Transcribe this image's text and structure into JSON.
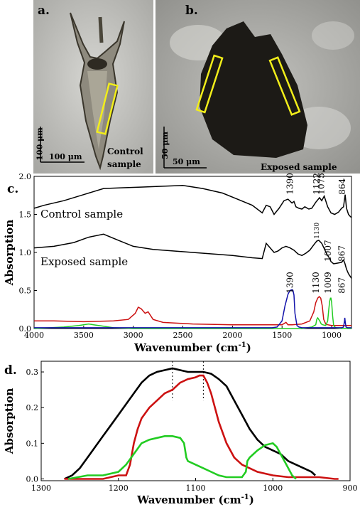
{
  "panels": {
    "a": {
      "letter": "a.",
      "scale_vertical": "100 μm",
      "scale_horizontal": "100 μm",
      "caption_line1": "Control",
      "caption_line2": "sample"
    },
    "b": {
      "letter": "b.",
      "scale_vertical": "50 μm",
      "scale_horizontal": "50 μm",
      "caption": "Exposed sample"
    }
  },
  "colors": {
    "black": "#000000",
    "red": "#cc1111",
    "green": "#22cc22",
    "blue": "#1111aa",
    "highlight": "#f2ee1a"
  },
  "chart_data": [
    {
      "panel": "c.",
      "type": "line",
      "xlabel": "Wavenumber (cm",
      "xlabel_sup": "-1",
      "xlabel_close": ")",
      "ylabel": "Absorption",
      "xlim": [
        4000,
        800
      ],
      "ylim": [
        0,
        2.0
      ],
      "x_ticks": [
        4000,
        3500,
        3000,
        2500,
        2000,
        1500,
        1000
      ],
      "y_ticks": [
        0.0,
        0.5,
        1.0,
        1.5,
        2.0
      ],
      "y_tick_labels": [
        "0.0",
        "0.5",
        "1.0",
        "1.5",
        "2.0"
      ],
      "series": [
        {
          "name": "Control sample",
          "color": "#000000",
          "x": [
            4000,
            3900,
            3700,
            3500,
            3300,
            3100,
            2900,
            2700,
            2500,
            2300,
            2100,
            1950,
            1800,
            1700,
            1660,
            1620,
            1580,
            1530,
            1480,
            1440,
            1400,
            1380,
            1360,
            1330,
            1300,
            1270,
            1230,
            1200,
            1160,
            1122,
            1100,
            1075,
            1040,
            1007,
            970,
            930,
            900,
            880,
            864,
            850,
            830,
            810,
            800
          ],
          "y": [
            1.58,
            1.62,
            1.68,
            1.76,
            1.84,
            1.85,
            1.86,
            1.87,
            1.88,
            1.84,
            1.78,
            1.7,
            1.62,
            1.52,
            1.62,
            1.6,
            1.5,
            1.58,
            1.68,
            1.7,
            1.65,
            1.67,
            1.6,
            1.58,
            1.57,
            1.6,
            1.57,
            1.58,
            1.66,
            1.72,
            1.68,
            1.74,
            1.6,
            1.52,
            1.5,
            1.53,
            1.58,
            1.6,
            1.76,
            1.58,
            1.5,
            1.47,
            1.46
          ]
        },
        {
          "name": "Exposed sample",
          "color": "#000000",
          "x": [
            4000,
            3800,
            3600,
            3450,
            3300,
            3150,
            3000,
            2800,
            2600,
            2400,
            2200,
            2000,
            1800,
            1700,
            1660,
            1620,
            1580,
            1540,
            1500,
            1460,
            1420,
            1380,
            1340,
            1300,
            1260,
            1220,
            1180,
            1150,
            1130,
            1100,
            1075,
            1050,
            1020,
            1007,
            980,
            940,
            900,
            880,
            867,
            850,
            830,
            810,
            800
          ],
          "y": [
            1.06,
            1.08,
            1.13,
            1.2,
            1.24,
            1.16,
            1.08,
            1.04,
            1.02,
            1.0,
            0.98,
            0.96,
            0.93,
            0.92,
            1.12,
            1.06,
            1.0,
            1.02,
            1.06,
            1.08,
            1.06,
            1.03,
            0.98,
            0.96,
            0.99,
            1.03,
            1.1,
            1.15,
            1.16,
            1.12,
            1.05,
            0.98,
            0.92,
            0.88,
            0.85,
            0.86,
            0.87,
            0.9,
            0.86,
            0.78,
            0.72,
            0.68,
            0.66
          ]
        },
        {
          "name": "red",
          "color": "#cc1111",
          "x": [
            4000,
            3800,
            3500,
            3200,
            3050,
            2980,
            2950,
            2920,
            2880,
            2850,
            2800,
            2700,
            2400,
            2000,
            1700,
            1500,
            1460,
            1440,
            1400,
            1300,
            1220,
            1180,
            1160,
            1140,
            1125,
            1110,
            1095,
            1080,
            1060,
            1040,
            1000,
            900,
            800
          ],
          "y": [
            0.1,
            0.1,
            0.09,
            0.1,
            0.12,
            0.2,
            0.28,
            0.26,
            0.2,
            0.22,
            0.12,
            0.08,
            0.06,
            0.05,
            0.05,
            0.05,
            0.08,
            0.05,
            0.05,
            0.06,
            0.1,
            0.22,
            0.34,
            0.4,
            0.42,
            0.4,
            0.3,
            0.12,
            0.06,
            0.05,
            0.04,
            0.04,
            0.04
          ]
        },
        {
          "name": "green",
          "color": "#22cc22",
          "x": [
            4000,
            3700,
            3550,
            3450,
            3400,
            3300,
            3200,
            3000,
            2500,
            2000,
            1600,
            1300,
            1200,
            1160,
            1150,
            1140,
            1130,
            1120,
            1105,
            1090,
            1060,
            1040,
            1030,
            1020,
            1012,
            1007,
            1000,
            990,
            980,
            960,
            900,
            800
          ],
          "y": [
            0.0,
            0.02,
            0.04,
            0.06,
            0.05,
            0.03,
            0.01,
            0.0,
            0.0,
            0.0,
            0.0,
            0.0,
            0.02,
            0.05,
            0.12,
            0.14,
            0.12,
            0.1,
            0.06,
            0.05,
            0.04,
            0.1,
            0.24,
            0.36,
            0.4,
            0.4,
            0.34,
            0.16,
            0.04,
            0.01,
            0.0,
            0.0
          ]
        },
        {
          "name": "blue",
          "color": "#1111aa",
          "x": [
            4000,
            3000,
            2000,
            1600,
            1550,
            1500,
            1470,
            1440,
            1420,
            1400,
            1390,
            1380,
            1370,
            1350,
            1330,
            1300,
            1200,
            1000,
            900,
            880,
            870,
            867,
            862,
            855,
            840,
            800
          ],
          "y": [
            0.01,
            0.01,
            0.01,
            0.01,
            0.02,
            0.1,
            0.3,
            0.45,
            0.5,
            0.51,
            0.5,
            0.44,
            0.2,
            0.04,
            0.02,
            0.01,
            0.01,
            0.01,
            0.01,
            0.02,
            0.1,
            0.14,
            0.08,
            0.02,
            0.01,
            0.01
          ]
        }
      ],
      "annotations": [
        {
          "text": "1390",
          "x": 1390,
          "at": "control"
        },
        {
          "text": "1122",
          "x": 1122,
          "at": "control"
        },
        {
          "text": "1075",
          "x": 1075,
          "at": "control"
        },
        {
          "text": "864",
          "x": 864,
          "at": "control"
        },
        {
          "text": "1130",
          "x": 1130,
          "at": "exposed",
          "small": true
        },
        {
          "text": "1007",
          "x": 1007,
          "at": "exposed"
        },
        {
          "text": "867",
          "x": 867,
          "at": "exposed"
        },
        {
          "text": "1390",
          "x": 1390,
          "at": "band"
        },
        {
          "text": "1130",
          "x": 1130,
          "at": "band"
        },
        {
          "text": "1009",
          "x": 1009,
          "at": "band"
        },
        {
          "text": "867",
          "x": 867,
          "at": "band"
        }
      ],
      "labels": {
        "control": "Control sample",
        "exposed": "Exposed sample"
      }
    },
    {
      "panel": "d.",
      "type": "line",
      "xlabel": "Wavenumber (cm",
      "xlabel_sup": "-1",
      "xlabel_close": ")",
      "ylabel": "Absorption",
      "xlim": [
        1300,
        900
      ],
      "ylim": [
        -0.005,
        0.33
      ],
      "x_ticks": [
        1300,
        1200,
        1100,
        1000,
        900
      ],
      "y_ticks": [
        0.0,
        0.1,
        0.2,
        0.3
      ],
      "y_tick_labels": [
        "0.0",
        "0.1",
        "0.2",
        "0.3"
      ],
      "x_tick_labels": [
        "1300",
        "1200",
        "1100",
        "1000",
        "900"
      ],
      "dotted_lines": [
        1130,
        1090
      ],
      "series": [
        {
          "name": "black",
          "color": "#000000",
          "x": [
            1270,
            1260,
            1250,
            1240,
            1230,
            1220,
            1210,
            1200,
            1190,
            1180,
            1170,
            1160,
            1150,
            1140,
            1130,
            1120,
            1110,
            1100,
            1090,
            1080,
            1070,
            1060,
            1050,
            1040,
            1030,
            1020,
            1010,
            1000,
            990,
            980,
            970,
            960,
            950,
            945
          ],
          "y": [
            0.0,
            0.01,
            0.03,
            0.06,
            0.09,
            0.12,
            0.15,
            0.18,
            0.21,
            0.24,
            0.27,
            0.29,
            0.3,
            0.305,
            0.31,
            0.305,
            0.3,
            0.3,
            0.3,
            0.295,
            0.28,
            0.26,
            0.22,
            0.18,
            0.14,
            0.11,
            0.09,
            0.08,
            0.07,
            0.05,
            0.04,
            0.03,
            0.02,
            0.01
          ]
        },
        {
          "name": "red",
          "color": "#cc1111",
          "x": [
            1270,
            1240,
            1220,
            1200,
            1190,
            1185,
            1180,
            1175,
            1170,
            1160,
            1150,
            1140,
            1130,
            1120,
            1110,
            1100,
            1095,
            1090,
            1085,
            1080,
            1075,
            1070,
            1060,
            1050,
            1040,
            1030,
            1020,
            1010,
            1000,
            980,
            960,
            940,
            920,
            915
          ],
          "y": [
            0.0,
            0.0,
            0.0,
            0.01,
            0.01,
            0.04,
            0.1,
            0.14,
            0.17,
            0.2,
            0.22,
            0.24,
            0.25,
            0.27,
            0.28,
            0.285,
            0.29,
            0.29,
            0.27,
            0.24,
            0.2,
            0.16,
            0.1,
            0.06,
            0.04,
            0.03,
            0.02,
            0.015,
            0.01,
            0.005,
            0.005,
            0.005,
            0.0,
            0.0
          ]
        },
        {
          "name": "green",
          "color": "#22cc22",
          "x": [
            1265,
            1240,
            1220,
            1200,
            1190,
            1180,
            1170,
            1160,
            1150,
            1140,
            1130,
            1120,
            1115,
            1112,
            1110,
            1100,
            1090,
            1080,
            1070,
            1060,
            1050,
            1040,
            1035,
            1033,
            1030,
            1020,
            1010,
            1000,
            995,
            990,
            985,
            980,
            975,
            970
          ],
          "y": [
            0.0,
            0.01,
            0.01,
            0.02,
            0.04,
            0.07,
            0.1,
            0.11,
            0.115,
            0.12,
            0.12,
            0.115,
            0.1,
            0.06,
            0.05,
            0.04,
            0.03,
            0.02,
            0.01,
            0.005,
            0.005,
            0.005,
            0.02,
            0.05,
            0.06,
            0.08,
            0.095,
            0.1,
            0.09,
            0.07,
            0.05,
            0.03,
            0.01,
            0.0
          ]
        }
      ]
    }
  ]
}
